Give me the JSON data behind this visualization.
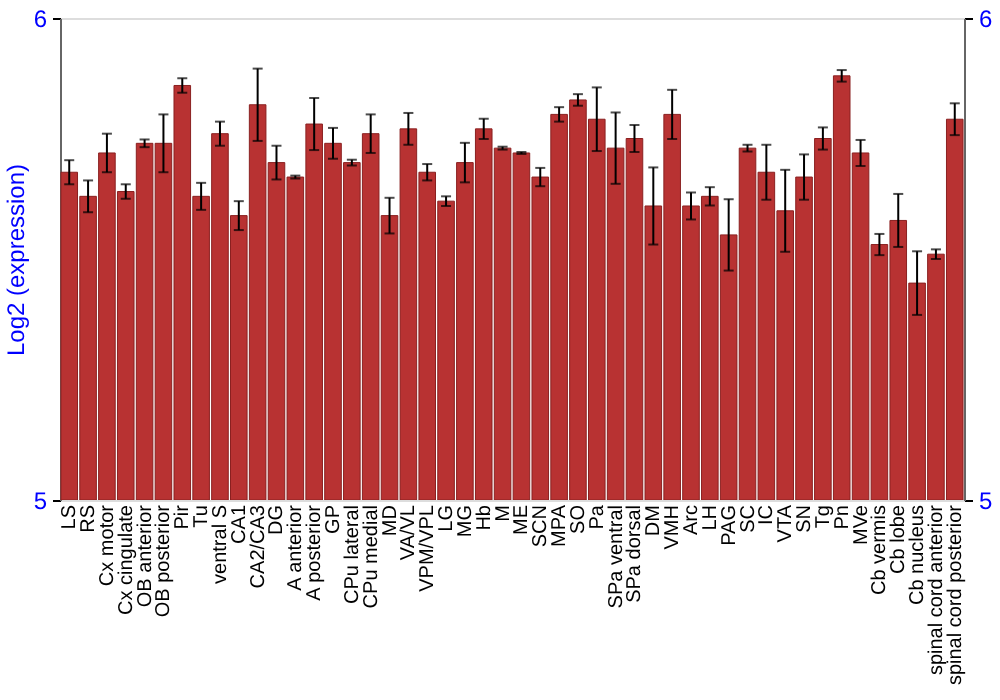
{
  "chart_data": {
    "type": "bar",
    "ylabel": "Log2 (expression)",
    "categories": [
      "LS",
      "RS",
      "Cx motor",
      "Cx cingulate",
      "OB anterior",
      "OB posterior",
      "Pir",
      "Tu",
      "ventral S",
      "CA1",
      "CA2/CA3",
      "DG",
      "A anterior",
      "A posterior",
      "GP",
      "CPu lateral",
      "CPu medial",
      "MD",
      "VA/VL",
      "VPM/VPL",
      "LG",
      "MG",
      "Hb",
      "M",
      "ME",
      "SCN",
      "MPA",
      "SO",
      "Pa",
      "SPa ventral",
      "SPa dorsal",
      "DM",
      "VMH",
      "Arc",
      "LH",
      "PAG",
      "SC",
      "IC",
      "VTA",
      "SN",
      "Tg",
      "Pn",
      "MVe",
      "Cb vermis",
      "Cb lobe",
      "Cb nucleus",
      "spinal cord anterior",
      "spinal cord posterior"
    ],
    "values": [
      5.68,
      5.63,
      5.72,
      5.64,
      5.74,
      5.74,
      5.86,
      5.63,
      5.76,
      5.59,
      5.82,
      5.7,
      5.67,
      5.78,
      5.74,
      5.7,
      5.76,
      5.59,
      5.77,
      5.68,
      5.62,
      5.7,
      5.77,
      5.73,
      5.72,
      5.67,
      5.8,
      5.83,
      5.79,
      5.73,
      5.75,
      5.61,
      5.8,
      5.61,
      5.63,
      5.55,
      5.73,
      5.68,
      5.6,
      5.67,
      5.75,
      5.88,
      5.72,
      5.53,
      5.58,
      5.45,
      5.51,
      5.79
    ],
    "errors": [
      0.025,
      0.033,
      0.04,
      0.015,
      0.008,
      0.06,
      0.015,
      0.028,
      0.025,
      0.03,
      0.075,
      0.035,
      0.003,
      0.054,
      0.032,
      0.006,
      0.04,
      0.037,
      0.033,
      0.017,
      0.01,
      0.041,
      0.021,
      0.003,
      0.002,
      0.019,
      0.015,
      0.012,
      0.066,
      0.074,
      0.028,
      0.08,
      0.051,
      0.028,
      0.019,
      0.074,
      0.007,
      0.057,
      0.085,
      0.047,
      0.023,
      0.012,
      0.027,
      0.022,
      0.055,
      0.066,
      0.01,
      0.033
    ],
    "color": "#b83232",
    "ylim": [
      5,
      6
    ],
    "yticks": [
      5,
      6
    ],
    "y2lim": [
      5,
      6
    ],
    "y2ticks": [
      5,
      6
    ],
    "grid": false
  }
}
